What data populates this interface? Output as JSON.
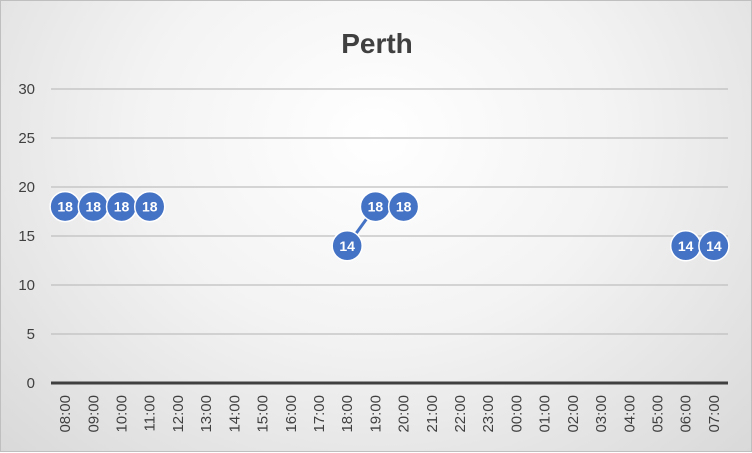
{
  "chart_data": {
    "type": "line",
    "title": "Perth",
    "xlabel": "",
    "ylabel": "",
    "ylim": [
      0,
      30
    ],
    "yticks": [
      0,
      5,
      10,
      15,
      20,
      25,
      30
    ],
    "grid": true,
    "legend": "none",
    "categories": [
      "08:00",
      "09:00",
      "10:00",
      "11:00",
      "12:00",
      "13:00",
      "14:00",
      "15:00",
      "16:00",
      "17:00",
      "18:00",
      "19:00",
      "20:00",
      "21:00",
      "22:00",
      "23:00",
      "00:00",
      "01:00",
      "02:00",
      "03:00",
      "04:00",
      "05:00",
      "06:00",
      "07:00"
    ],
    "series": [
      {
        "values": [
          18,
          18,
          18,
          18,
          null,
          null,
          null,
          null,
          null,
          null,
          14,
          18,
          18,
          null,
          null,
          null,
          null,
          null,
          null,
          null,
          null,
          null,
          14,
          14
        ],
        "data_labels": true
      }
    ],
    "colors": {
      "series": "#4472c4",
      "marker_border": "#ffffff",
      "gridline": "#bfbfbf",
      "axis_line": "#404040",
      "text": "#404040"
    }
  }
}
